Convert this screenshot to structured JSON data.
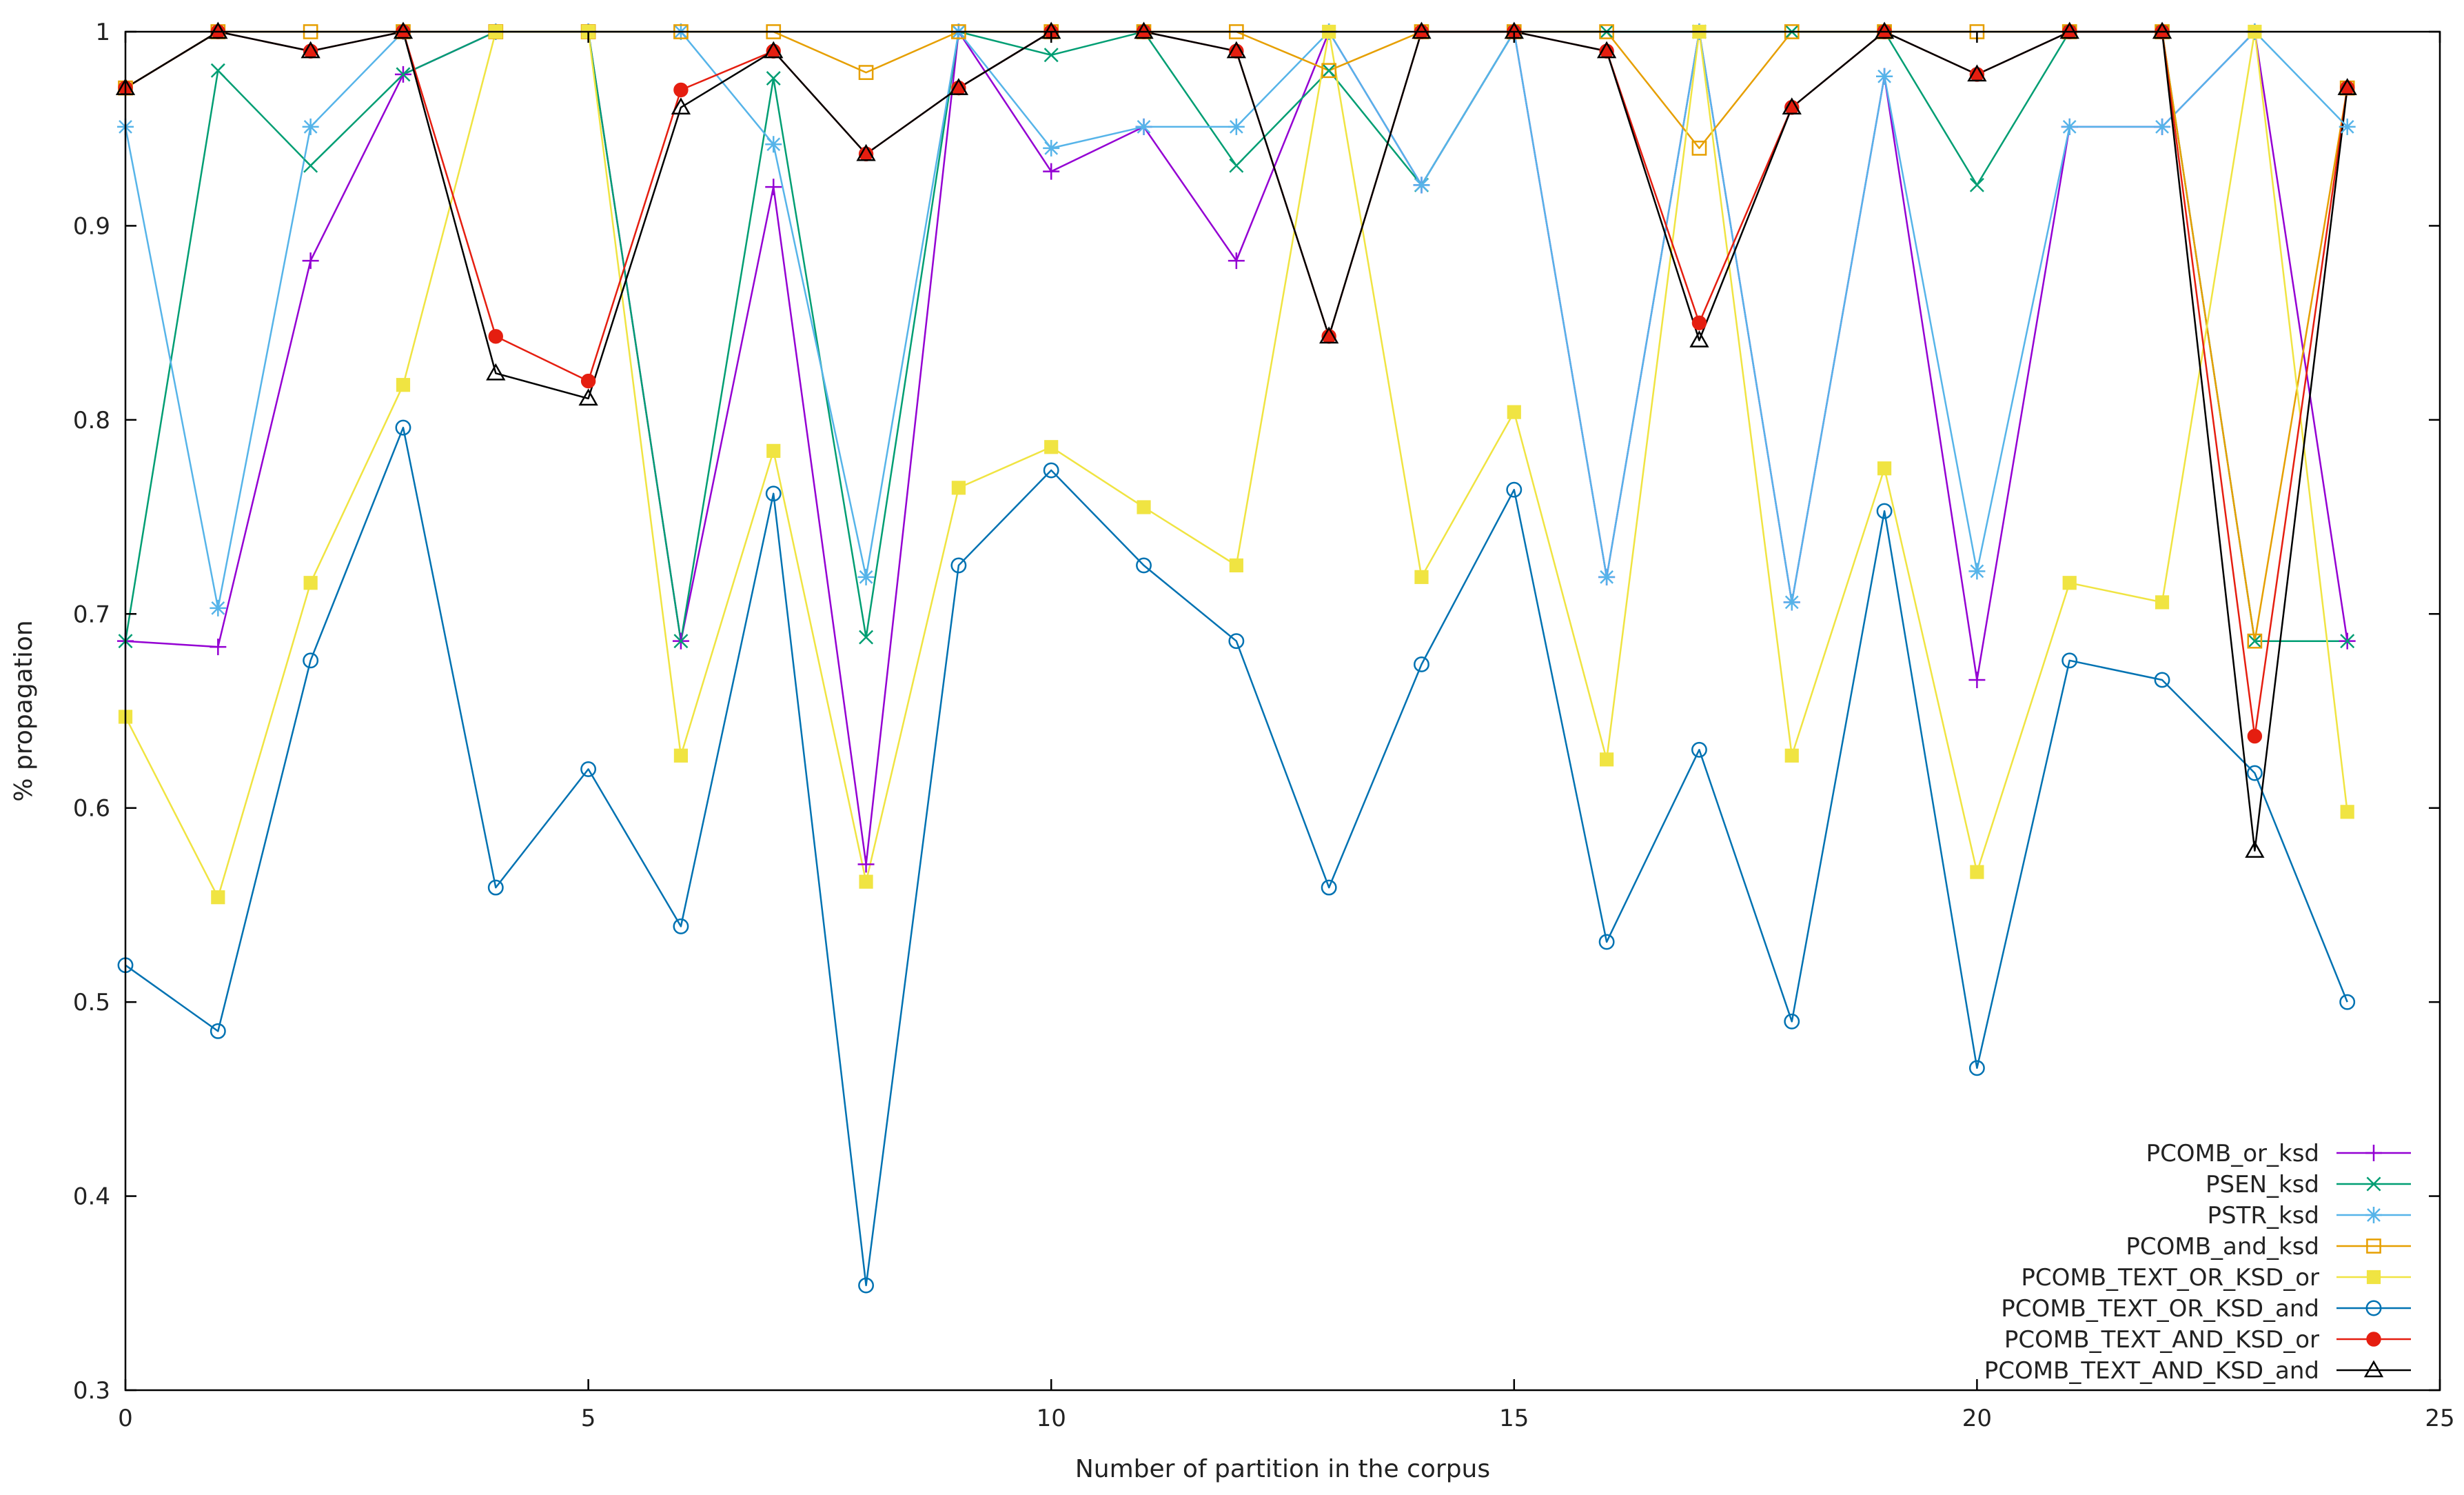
{
  "chart_data": {
    "type": "line",
    "title": "",
    "xlabel": "Number of partition in the corpus",
    "ylabel": "% propagation",
    "xlim": [
      0,
      25
    ],
    "ylim": [
      0.3,
      1
    ],
    "xticks": [
      0,
      5,
      10,
      15,
      20,
      25
    ],
    "yticks": [
      0.3,
      0.4,
      0.5,
      0.6,
      0.7,
      0.8,
      0.9,
      1
    ],
    "xtick_labels": [
      "0",
      "5",
      "10",
      "15",
      "20",
      "25"
    ],
    "ytick_labels": [
      "0.3",
      "0.4",
      "0.5",
      "0.6",
      "0.7",
      "0.8",
      "0.9",
      "1"
    ],
    "grid": false,
    "legend_position": "bottom-right",
    "x": [
      0,
      1,
      2,
      3,
      4,
      5,
      6,
      7,
      8,
      9,
      10,
      11,
      12,
      13,
      14,
      15,
      16,
      17,
      18,
      19,
      20,
      21,
      22,
      23,
      24
    ],
    "series": [
      {
        "name": "PCOMB_or_ksd",
        "color": "#9400d3",
        "marker": "plus",
        "values": [
          0.686,
          0.683,
          0.882,
          0.978,
          1.0,
          1.0,
          0.686,
          0.92,
          0.571,
          1.0,
          0.928,
          0.951,
          0.882,
          1.0,
          0.921,
          1.0,
          0.719,
          1.0,
          0.706,
          0.977,
          0.666,
          0.951,
          0.951,
          1.0,
          0.686
        ]
      },
      {
        "name": "PSEN_ksd",
        "color": "#009e73",
        "marker": "cross",
        "values": [
          0.686,
          0.98,
          0.931,
          0.978,
          1.0,
          1.0,
          0.686,
          0.976,
          0.688,
          1.0,
          0.988,
          1.0,
          0.931,
          0.98,
          0.921,
          1.0,
          1.0,
          1.0,
          1.0,
          1.0,
          0.921,
          1.0,
          1.0,
          0.686,
          0.686
        ]
      },
      {
        "name": "PSTR_ksd",
        "color": "#56b4e9",
        "marker": "star",
        "values": [
          0.951,
          0.703,
          0.951,
          1.0,
          1.0,
          1.0,
          1.0,
          0.942,
          0.719,
          1.0,
          0.94,
          0.951,
          0.951,
          1.0,
          0.921,
          1.0,
          0.719,
          1.0,
          0.706,
          0.977,
          0.722,
          0.951,
          0.951,
          1.0,
          0.951
        ]
      },
      {
        "name": "PCOMB_and_ksd",
        "color": "#e69f00",
        "marker": "square-open",
        "values": [
          0.971,
          1.0,
          1.0,
          1.0,
          1.0,
          1.0,
          1.0,
          1.0,
          0.979,
          1.0,
          1.0,
          1.0,
          1.0,
          0.98,
          1.0,
          1.0,
          1.0,
          0.94,
          1.0,
          1.0,
          1.0,
          1.0,
          1.0,
          0.686,
          0.971
        ]
      },
      {
        "name": "PCOMB_TEXT_OR_KSD_or",
        "color": "#f0e442",
        "marker": "square-filled",
        "values": [
          0.647,
          0.554,
          0.716,
          0.818,
          1.0,
          1.0,
          0.627,
          0.784,
          0.562,
          0.765,
          0.786,
          0.755,
          0.725,
          1.0,
          0.719,
          0.804,
          0.625,
          1.0,
          0.627,
          0.775,
          0.567,
          0.716,
          0.706,
          1.0,
          0.598
        ]
      },
      {
        "name": "PCOMB_TEXT_OR_KSD_and",
        "color": "#0072b2",
        "marker": "circle-open",
        "values": [
          0.519,
          0.485,
          0.676,
          0.796,
          0.559,
          0.62,
          0.539,
          0.762,
          0.354,
          0.725,
          0.774,
          0.725,
          0.686,
          0.559,
          0.674,
          0.764,
          0.531,
          0.63,
          0.49,
          0.753,
          0.466,
          0.676,
          0.666,
          0.618,
          0.5
        ]
      },
      {
        "name": "PCOMB_TEXT_AND_KSD_or",
        "color": "#e51e10",
        "marker": "circle-filled",
        "values": [
          0.971,
          1.0,
          0.99,
          1.0,
          0.843,
          0.82,
          0.97,
          0.99,
          0.937,
          0.971,
          1.0,
          1.0,
          0.99,
          0.843,
          1.0,
          1.0,
          0.99,
          0.85,
          0.961,
          1.0,
          0.978,
          1.0,
          1.0,
          0.637,
          0.971
        ]
      },
      {
        "name": "PCOMB_TEXT_AND_KSD_and",
        "color": "#000000",
        "marker": "triangle-open",
        "values": [
          0.971,
          1.0,
          0.99,
          1.0,
          0.824,
          0.811,
          0.961,
          0.99,
          0.937,
          0.971,
          1.0,
          1.0,
          0.99,
          0.843,
          1.0,
          1.0,
          0.99,
          0.841,
          0.961,
          1.0,
          0.978,
          1.0,
          1.0,
          0.578,
          0.971
        ]
      }
    ]
  }
}
